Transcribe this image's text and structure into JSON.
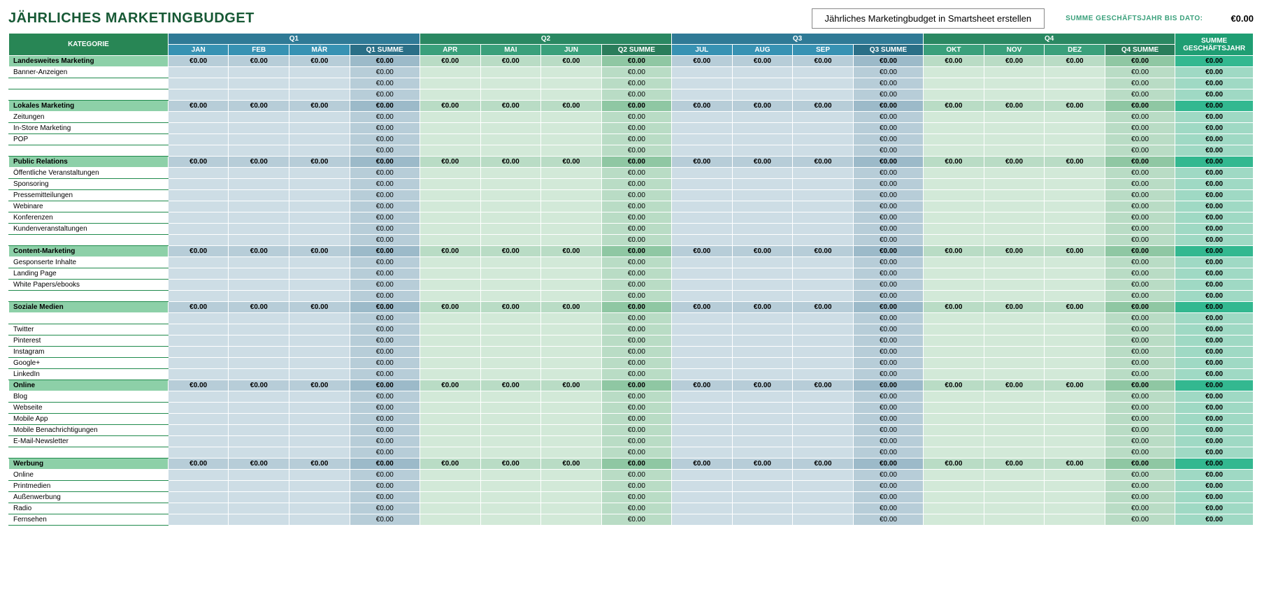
{
  "page": {
    "title": "JÄHRLICHES MARKETINGBUDGET",
    "smartsheet_button": "Jährliches Marketingbudget in Smartsheet erstellen",
    "ytd_label": "SUMME GESCHÄFTSJAHR BIS DATO:",
    "ytd_value": "€0.00"
  },
  "headers": {
    "category": "KATEGORIE",
    "total_line1": "SUMME",
    "total_line2": "GESCHÄFTSJAHR",
    "q1": {
      "label": "Q1",
      "m1": "JAN",
      "m2": "FEB",
      "m3": "MÄR",
      "sum": "Q1 SUMME"
    },
    "q2": {
      "label": "Q2",
      "m1": "APR",
      "m2": "MAI",
      "m3": "JUN",
      "sum": "Q2 SUMME"
    },
    "q3": {
      "label": "Q3",
      "m1": "JUL",
      "m2": "AUG",
      "m3": "SEP",
      "sum": "Q3 SUMME"
    },
    "q4": {
      "label": "Q4",
      "m1": "OKT",
      "m2": "NOV",
      "m3": "DEZ",
      "sum": "Q4 SUMME"
    }
  },
  "zero": "€0.00",
  "sections": [
    {
      "label": "Landesweites Marketing",
      "items": [
        "Banner-Anzeigen",
        "",
        ""
      ]
    },
    {
      "label": "Lokales Marketing",
      "items": [
        "Zeitungen",
        "In-Store Marketing",
        "POP",
        ""
      ]
    },
    {
      "label": "Public Relations",
      "items": [
        "Öffentliche Veranstaltungen",
        "Sponsoring",
        "Pressemitteilungen",
        "Webinare",
        "Konferenzen",
        "Kundenveranstaltungen",
        ""
      ]
    },
    {
      "label": "Content-Marketing",
      "items": [
        "Gesponserte Inhalte",
        "Landing Page",
        "White Papers/ebooks",
        ""
      ]
    },
    {
      "label": "Soziale Medien",
      "items": [
        "",
        "Twitter",
        "Pinterest",
        "Instagram",
        "Google+",
        "LinkedIn"
      ]
    },
    {
      "label": "Online",
      "items": [
        "Blog",
        "Webseite",
        "Mobile App",
        "Mobile Benachrichtigungen",
        "E-Mail-Newsletter",
        ""
      ]
    },
    {
      "label": "Werbung",
      "items": [
        "Online",
        "Printmedien",
        "Außenwerbung",
        "Radio",
        "Fernsehen"
      ]
    }
  ]
}
